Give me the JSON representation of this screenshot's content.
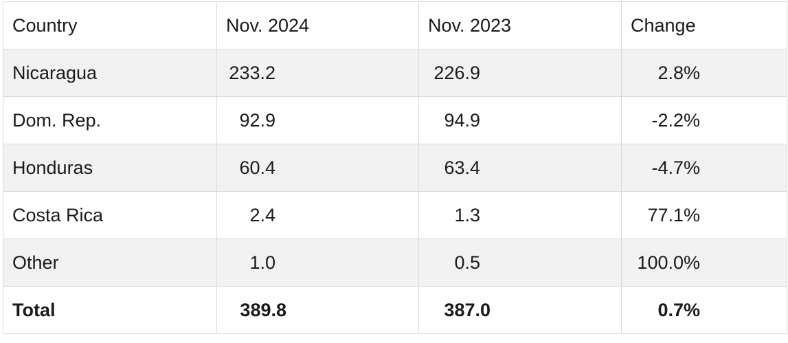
{
  "chart_data": {
    "type": "table",
    "columns": [
      "Country",
      "Nov. 2024",
      "Nov. 2023",
      "Change"
    ],
    "rows": [
      [
        "Nicaragua",
        "233.2",
        "226.9",
        "2.8%"
      ],
      [
        "Dom. Rep.",
        "92.9",
        "94.9",
        "-2.2%"
      ],
      [
        "Honduras",
        "60.4",
        "63.4",
        "-4.7%"
      ],
      [
        "Costa Rica",
        "2.4",
        "1.3",
        "77.1%"
      ],
      [
        "Other",
        "1.0",
        "0.5",
        "100.0%"
      ]
    ],
    "total": [
      "Total",
      "389.8",
      "387.0",
      "0.7%"
    ]
  },
  "colors": {
    "stripe": "#f2f2f2",
    "border": "#d9d9d9",
    "text": "#1a1a1a"
  }
}
